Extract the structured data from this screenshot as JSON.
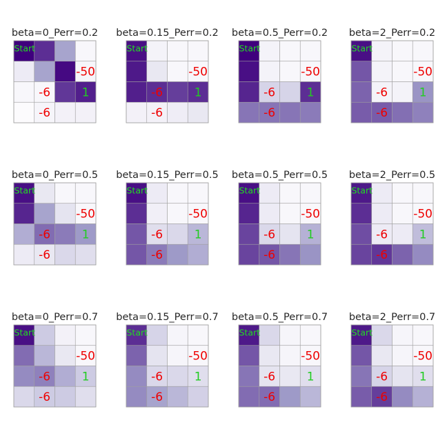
{
  "figure": {
    "description_rows": 3,
    "description_cols": 4
  },
  "colormap": {
    "name": "Purples",
    "low": "#fcfbfd",
    "high": "#3f007d",
    "cell_border": "#a0a0a0"
  },
  "chart_data": [
    {
      "type": "heatmap",
      "title": "beta=0_Perr=0.2",
      "grid": [
        [
          1.0,
          0.85,
          0.45,
          0.02
        ],
        [
          0.08,
          0.45,
          0.97,
          0.03
        ],
        [
          0.02,
          0.02,
          0.82,
          0.9
        ],
        [
          0.0,
          0.03,
          0.05,
          0.05
        ]
      ],
      "labels": [
        {
          "row": 0,
          "col": 0,
          "text": "Start",
          "kind": "start"
        },
        {
          "row": 1,
          "col": 3,
          "text": "-50",
          "kind": "neg"
        },
        {
          "row": 2,
          "col": 1,
          "text": "-6",
          "kind": "neg"
        },
        {
          "row": 2,
          "col": 3,
          "text": "1",
          "kind": "pos"
        },
        {
          "row": 3,
          "col": 1,
          "text": "-6",
          "kind": "neg"
        }
      ]
    },
    {
      "type": "heatmap",
      "title": "beta=0.15_Perr=0.2",
      "grid": [
        [
          0.95,
          0.04,
          0.02,
          0.02
        ],
        [
          0.92,
          0.1,
          0.02,
          0.02
        ],
        [
          0.9,
          0.85,
          0.8,
          0.85
        ],
        [
          0.05,
          0.05,
          0.07,
          0.1
        ]
      ],
      "labels": [
        {
          "row": 0,
          "col": 0,
          "text": "Start",
          "kind": "start"
        },
        {
          "row": 1,
          "col": 3,
          "text": "-50",
          "kind": "neg"
        },
        {
          "row": 2,
          "col": 1,
          "text": "-6",
          "kind": "neg"
        },
        {
          "row": 2,
          "col": 3,
          "text": "1",
          "kind": "pos"
        },
        {
          "row": 3,
          "col": 1,
          "text": "-6",
          "kind": "neg"
        }
      ]
    },
    {
      "type": "heatmap",
      "title": "beta=0.5_Perr=0.2",
      "grid": [
        [
          1.0,
          0.04,
          0.02,
          0.02
        ],
        [
          0.95,
          0.04,
          0.02,
          0.02
        ],
        [
          0.88,
          0.2,
          0.2,
          0.85
        ],
        [
          0.62,
          0.62,
          0.62,
          0.6
        ]
      ],
      "labels": [
        {
          "row": 0,
          "col": 0,
          "text": "Start",
          "kind": "start"
        },
        {
          "row": 1,
          "col": 3,
          "text": "-50",
          "kind": "neg"
        },
        {
          "row": 2,
          "col": 1,
          "text": "-6",
          "kind": "neg"
        },
        {
          "row": 2,
          "col": 3,
          "text": "1",
          "kind": "pos"
        },
        {
          "row": 3,
          "col": 1,
          "text": "-6",
          "kind": "neg"
        }
      ]
    },
    {
      "type": "heatmap",
      "title": "beta=2_Perr=0.2",
      "grid": [
        [
          0.95,
          0.04,
          0.02,
          0.02
        ],
        [
          0.72,
          0.04,
          0.02,
          0.02
        ],
        [
          0.68,
          0.04,
          0.04,
          0.52
        ],
        [
          0.7,
          0.7,
          0.64,
          0.58
        ]
      ],
      "labels": [
        {
          "row": 0,
          "col": 0,
          "text": "Start",
          "kind": "start"
        },
        {
          "row": 1,
          "col": 3,
          "text": "-50",
          "kind": "neg"
        },
        {
          "row": 2,
          "col": 1,
          "text": "-6",
          "kind": "neg"
        },
        {
          "row": 2,
          "col": 3,
          "text": "1",
          "kind": "pos"
        },
        {
          "row": 3,
          "col": 1,
          "text": "-6",
          "kind": "neg"
        }
      ]
    },
    {
      "type": "heatmap",
      "title": "beta=0_Perr=0.5",
      "grid": [
        [
          0.95,
          0.1,
          0.02,
          0.02
        ],
        [
          0.88,
          0.45,
          0.12,
          0.02
        ],
        [
          0.4,
          0.65,
          0.6,
          0.5
        ],
        [
          0.08,
          0.1,
          0.18,
          0.15
        ]
      ],
      "labels": [
        {
          "row": 0,
          "col": 0,
          "text": "Start",
          "kind": "start"
        },
        {
          "row": 1,
          "col": 3,
          "text": "-50",
          "kind": "neg"
        },
        {
          "row": 2,
          "col": 1,
          "text": "-6",
          "kind": "neg"
        },
        {
          "row": 2,
          "col": 3,
          "text": "1",
          "kind": "pos"
        },
        {
          "row": 3,
          "col": 1,
          "text": "-6",
          "kind": "neg"
        }
      ]
    },
    {
      "type": "heatmap",
      "title": "beta=0.15_Perr=0.5",
      "grid": [
        [
          0.95,
          0.08,
          0.02,
          0.02
        ],
        [
          0.85,
          0.06,
          0.02,
          0.02
        ],
        [
          0.72,
          0.15,
          0.18,
          0.35
        ],
        [
          0.72,
          0.6,
          0.5,
          0.4
        ]
      ],
      "labels": [
        {
          "row": 0,
          "col": 0,
          "text": "Start",
          "kind": "start"
        },
        {
          "row": 1,
          "col": 3,
          "text": "-50",
          "kind": "neg"
        },
        {
          "row": 2,
          "col": 1,
          "text": "-6",
          "kind": "neg"
        },
        {
          "row": 2,
          "col": 3,
          "text": "1",
          "kind": "pos"
        },
        {
          "row": 3,
          "col": 1,
          "text": "-6",
          "kind": "neg"
        }
      ]
    },
    {
      "type": "heatmap",
      "title": "beta=0.5_Perr=0.5",
      "grid": [
        [
          0.95,
          0.08,
          0.02,
          0.02
        ],
        [
          0.88,
          0.08,
          0.02,
          0.02
        ],
        [
          0.78,
          0.18,
          0.12,
          0.38
        ],
        [
          0.78,
          0.72,
          0.62,
          0.52
        ]
      ],
      "labels": [
        {
          "row": 0,
          "col": 0,
          "text": "Start",
          "kind": "start"
        },
        {
          "row": 1,
          "col": 3,
          "text": "-50",
          "kind": "neg"
        },
        {
          "row": 2,
          "col": 1,
          "text": "-6",
          "kind": "neg"
        },
        {
          "row": 2,
          "col": 3,
          "text": "1",
          "kind": "pos"
        },
        {
          "row": 3,
          "col": 1,
          "text": "-6",
          "kind": "neg"
        }
      ]
    },
    {
      "type": "heatmap",
      "title": "beta=2_Perr=0.5",
      "grid": [
        [
          0.92,
          0.08,
          0.02,
          0.02
        ],
        [
          0.85,
          0.08,
          0.02,
          0.02
        ],
        [
          0.75,
          0.08,
          0.08,
          0.32
        ],
        [
          0.78,
          0.82,
          0.68,
          0.55
        ]
      ],
      "labels": [
        {
          "row": 0,
          "col": 0,
          "text": "Start",
          "kind": "start"
        },
        {
          "row": 1,
          "col": 3,
          "text": "-50",
          "kind": "neg"
        },
        {
          "row": 2,
          "col": 1,
          "text": "-6",
          "kind": "neg"
        },
        {
          "row": 2,
          "col": 3,
          "text": "1",
          "kind": "pos"
        },
        {
          "row": 3,
          "col": 1,
          "text": "-6",
          "kind": "neg"
        }
      ]
    },
    {
      "type": "heatmap",
      "title": "beta=0_Perr=0.7",
      "grid": [
        [
          0.95,
          0.25,
          0.05,
          0.02
        ],
        [
          0.65,
          0.35,
          0.1,
          0.02
        ],
        [
          0.55,
          0.58,
          0.4,
          0.25
        ],
        [
          0.18,
          0.25,
          0.25,
          0.15
        ]
      ],
      "labels": [
        {
          "row": 0,
          "col": 0,
          "text": "Start",
          "kind": "start"
        },
        {
          "row": 1,
          "col": 3,
          "text": "-50",
          "kind": "neg"
        },
        {
          "row": 2,
          "col": 1,
          "text": "-6",
          "kind": "neg"
        },
        {
          "row": 2,
          "col": 3,
          "text": "1",
          "kind": "pos"
        },
        {
          "row": 3,
          "col": 1,
          "text": "-6",
          "kind": "neg"
        }
      ]
    },
    {
      "type": "heatmap",
      "title": "beta=0.15_Perr=0.7",
      "grid": [
        [
          0.85,
          0.2,
          0.03,
          0.02
        ],
        [
          0.68,
          0.12,
          0.03,
          0.02
        ],
        [
          0.55,
          0.18,
          0.18,
          0.15
        ],
        [
          0.55,
          0.45,
          0.35,
          0.22
        ]
      ],
      "labels": [
        {
          "row": 0,
          "col": 0,
          "text": "Start",
          "kind": "start"
        },
        {
          "row": 1,
          "col": 3,
          "text": "-50",
          "kind": "neg"
        },
        {
          "row": 2,
          "col": 1,
          "text": "-6",
          "kind": "neg"
        },
        {
          "row": 2,
          "col": 3,
          "text": "1",
          "kind": "pos"
        },
        {
          "row": 3,
          "col": 1,
          "text": "-6",
          "kind": "neg"
        }
      ]
    },
    {
      "type": "heatmap",
      "title": "beta=0.5_Perr=0.7",
      "grid": [
        [
          0.92,
          0.18,
          0.03,
          0.02
        ],
        [
          0.72,
          0.1,
          0.03,
          0.02
        ],
        [
          0.62,
          0.12,
          0.1,
          0.15
        ],
        [
          0.65,
          0.65,
          0.5,
          0.35
        ]
      ],
      "labels": [
        {
          "row": 0,
          "col": 0,
          "text": "Start",
          "kind": "start"
        },
        {
          "row": 1,
          "col": 3,
          "text": "-50",
          "kind": "neg"
        },
        {
          "row": 2,
          "col": 1,
          "text": "-6",
          "kind": "neg"
        },
        {
          "row": 2,
          "col": 3,
          "text": "1",
          "kind": "pos"
        },
        {
          "row": 3,
          "col": 1,
          "text": "-6",
          "kind": "neg"
        }
      ]
    },
    {
      "type": "heatmap",
      "title": "beta=2_Perr=0.7",
      "grid": [
        [
          0.92,
          0.18,
          0.03,
          0.02
        ],
        [
          0.72,
          0.1,
          0.03,
          0.02
        ],
        [
          0.62,
          0.2,
          0.12,
          0.15
        ],
        [
          0.7,
          0.8,
          0.55,
          0.38
        ]
      ],
      "labels": [
        {
          "row": 0,
          "col": 0,
          "text": "Start",
          "kind": "start"
        },
        {
          "row": 1,
          "col": 3,
          "text": "-50",
          "kind": "neg"
        },
        {
          "row": 2,
          "col": 1,
          "text": "-6",
          "kind": "neg"
        },
        {
          "row": 2,
          "col": 3,
          "text": "1",
          "kind": "pos"
        },
        {
          "row": 3,
          "col": 1,
          "text": "-6",
          "kind": "neg"
        }
      ]
    }
  ]
}
